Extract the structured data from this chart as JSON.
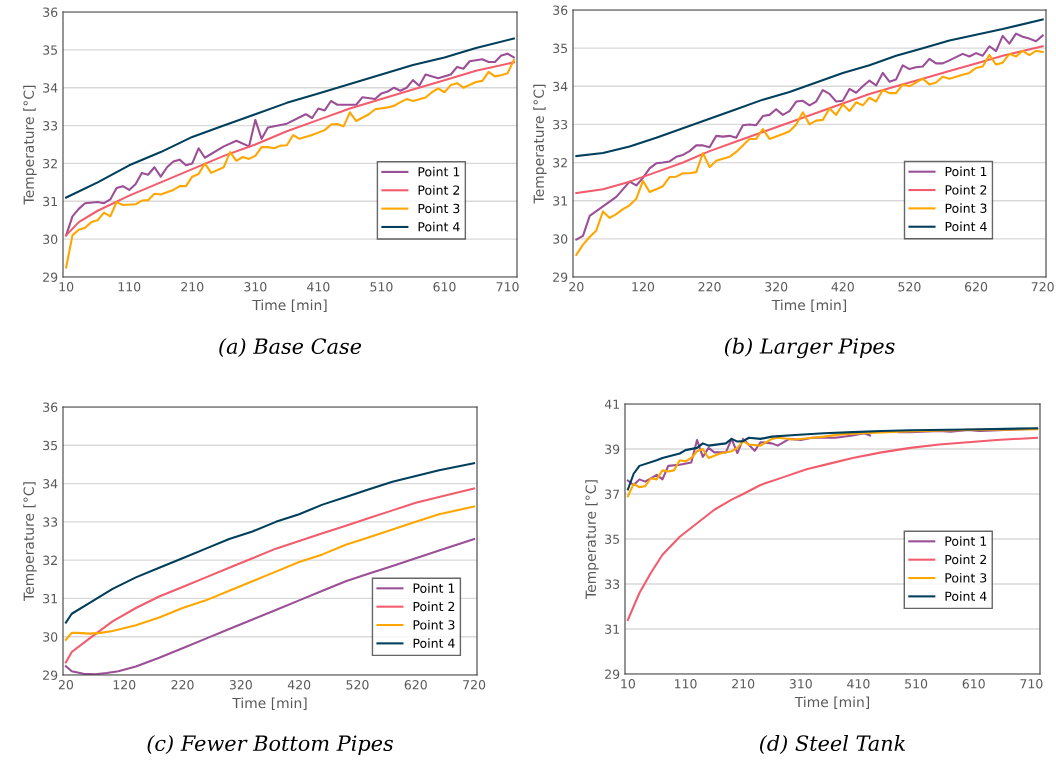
{
  "chart_data": [
    {
      "type": "line",
      "title": "(a) Base Case",
      "xlabel": "Time [min]",
      "ylabel": "Temperature [°C]",
      "xlim": [
        5,
        725
      ],
      "xticks": [
        10,
        110,
        210,
        310,
        410,
        510,
        610,
        710
      ],
      "ylim": [
        29,
        36
      ],
      "yticks": [
        29,
        30,
        31,
        32,
        33,
        34,
        35,
        36
      ],
      "grid": "y",
      "legend": "bottom right",
      "series": [
        {
          "name": "Point 1",
          "color": "#9b4f96",
          "x": [
            10,
            20,
            30,
            40,
            60,
            70,
            80,
            90,
            100,
            110,
            120,
            130,
            140,
            150,
            160,
            170,
            180,
            190,
            200,
            210,
            220,
            230,
            260,
            280,
            300,
            310,
            320,
            330,
            360,
            390,
            400,
            410,
            420,
            430,
            440,
            470,
            480,
            500,
            510,
            520,
            530,
            540,
            550,
            560,
            570,
            580,
            600,
            620,
            630,
            640,
            650,
            670,
            680,
            690,
            700,
            710,
            720
          ],
          "values": [
            30.1,
            30.6,
            30.8,
            30.95,
            30.98,
            30.95,
            31.05,
            31.35,
            31.4,
            31.3,
            31.45,
            31.75,
            31.7,
            31.9,
            31.65,
            31.9,
            32.05,
            32.1,
            31.95,
            32.0,
            32.4,
            32.15,
            32.45,
            32.6,
            32.45,
            33.15,
            32.65,
            32.95,
            33.05,
            33.3,
            33.2,
            33.45,
            33.4,
            33.65,
            33.55,
            33.55,
            33.75,
            33.7,
            33.85,
            33.9,
            34.0,
            33.92,
            34.0,
            34.2,
            34.05,
            34.35,
            34.25,
            34.35,
            34.55,
            34.5,
            34.7,
            34.75,
            34.68,
            34.68,
            34.85,
            34.9,
            34.8
          ]
        },
        {
          "name": "Point 2",
          "color": "#f25c6c",
          "x": [
            10,
            30,
            60,
            110,
            160,
            210,
            260,
            310,
            360,
            410,
            460,
            510,
            560,
            610,
            660,
            720
          ],
          "values": [
            30.1,
            30.45,
            30.75,
            31.15,
            31.5,
            31.85,
            32.2,
            32.5,
            32.85,
            33.15,
            33.45,
            33.7,
            33.95,
            34.2,
            34.45,
            34.67
          ]
        },
        {
          "name": "Point 3",
          "color": "#ffa600",
          "x": [
            10,
            20,
            30,
            40,
            50,
            60,
            70,
            80,
            90,
            100,
            120,
            130,
            140,
            150,
            160,
            180,
            190,
            200,
            210,
            220,
            230,
            240,
            260,
            270,
            280,
            290,
            300,
            310,
            320,
            330,
            340,
            350,
            360,
            370,
            380,
            400,
            420,
            430,
            440,
            450,
            460,
            470,
            490,
            500,
            520,
            530,
            540,
            550,
            560,
            580,
            590,
            600,
            610,
            620,
            630,
            640,
            660,
            670,
            680,
            690,
            700,
            710,
            720
          ],
          "values": [
            29.25,
            30.1,
            30.25,
            30.3,
            30.45,
            30.5,
            30.7,
            30.6,
            30.98,
            30.9,
            30.92,
            31.02,
            31.03,
            31.2,
            31.18,
            31.3,
            31.4,
            31.4,
            31.65,
            31.72,
            32.0,
            31.75,
            31.9,
            32.3,
            32.07,
            32.17,
            32.12,
            32.2,
            32.43,
            32.43,
            32.4,
            32.47,
            32.48,
            32.75,
            32.65,
            32.75,
            32.88,
            33.03,
            33.04,
            32.98,
            33.35,
            33.12,
            33.3,
            33.43,
            33.48,
            33.52,
            33.62,
            33.7,
            33.65,
            33.74,
            33.88,
            33.98,
            33.88,
            34.07,
            34.12,
            34.0,
            34.15,
            34.18,
            34.42,
            34.3,
            34.33,
            34.38,
            34.73
          ]
        },
        {
          "name": "Point 4",
          "color": "#003f5c",
          "x": [
            10,
            60,
            110,
            160,
            210,
            260,
            310,
            360,
            410,
            460,
            510,
            560,
            610,
            660,
            720
          ],
          "values": [
            31.1,
            31.5,
            31.95,
            32.3,
            32.7,
            33.0,
            33.3,
            33.6,
            33.85,
            34.1,
            34.35,
            34.6,
            34.8,
            35.05,
            35.3
          ]
        }
      ]
    },
    {
      "type": "line",
      "title": "(b) Larger Pipes",
      "xlabel": "Time [min]",
      "ylabel": "Temperature [°C]",
      "xlim": [
        15,
        725
      ],
      "xticks": [
        20,
        120,
        220,
        320,
        420,
        520,
        620,
        720
      ],
      "ylim": [
        29,
        36
      ],
      "yticks": [
        29,
        30,
        31,
        32,
        33,
        34,
        35,
        36
      ],
      "grid": "y",
      "legend": "bottom right",
      "series": [
        {
          "name": "Point 1",
          "color": "#9b4f96",
          "x": [
            20,
            30,
            40,
            60,
            80,
            100,
            110,
            120,
            130,
            140,
            150,
            160,
            170,
            180,
            190,
            200,
            210,
            220,
            230,
            240,
            250,
            260,
            270,
            280,
            290,
            300,
            310,
            320,
            330,
            340,
            350,
            360,
            370,
            380,
            390,
            400,
            410,
            420,
            430,
            440,
            450,
            460,
            470,
            480,
            490,
            500,
            510,
            520,
            530,
            540,
            550,
            560,
            570,
            580,
            600,
            610,
            620,
            630,
            640,
            650,
            660,
            670,
            680,
            690,
            700,
            710,
            720
          ],
          "values": [
            29.98,
            30.08,
            30.6,
            30.85,
            31.1,
            31.5,
            31.4,
            31.6,
            31.85,
            31.98,
            32.0,
            32.03,
            32.15,
            32.2,
            32.3,
            32.45,
            32.45,
            32.4,
            32.7,
            32.68,
            32.7,
            32.65,
            32.98,
            33.0,
            32.98,
            33.22,
            33.25,
            33.4,
            33.25,
            33.35,
            33.6,
            33.62,
            33.5,
            33.6,
            33.9,
            33.8,
            33.6,
            33.62,
            33.93,
            33.83,
            34.0,
            34.15,
            34.02,
            34.35,
            34.12,
            34.18,
            34.55,
            34.45,
            34.5,
            34.52,
            34.72,
            34.6,
            34.6,
            34.68,
            34.85,
            34.78,
            34.87,
            34.8,
            35.05,
            34.92,
            35.32,
            35.12,
            35.38,
            35.3,
            35.25,
            35.18,
            35.33
          ]
        },
        {
          "name": "Point 2",
          "color": "#f25c6c",
          "x": [
            20,
            60,
            100,
            140,
            180,
            220,
            260,
            300,
            340,
            380,
            420,
            460,
            500,
            540,
            580,
            620,
            660,
            720
          ],
          "values": [
            31.2,
            31.3,
            31.5,
            31.75,
            32.0,
            32.3,
            32.55,
            32.8,
            33.05,
            33.3,
            33.55,
            33.8,
            34.0,
            34.2,
            34.4,
            34.6,
            34.8,
            35.05
          ]
        },
        {
          "name": "Point 3",
          "color": "#ffa600",
          "x": [
            20,
            30,
            40,
            50,
            60,
            70,
            80,
            90,
            100,
            110,
            120,
            130,
            140,
            150,
            160,
            170,
            180,
            190,
            200,
            210,
            220,
            230,
            250,
            260,
            280,
            290,
            300,
            310,
            330,
            340,
            350,
            360,
            370,
            380,
            390,
            400,
            410,
            420,
            430,
            440,
            450,
            460,
            470,
            480,
            490,
            500,
            510,
            520,
            540,
            550,
            560,
            570,
            580,
            600,
            610,
            620,
            630,
            640,
            650,
            660,
            670,
            680,
            690,
            700,
            710,
            720
          ],
          "values": [
            29.58,
            29.85,
            30.05,
            30.22,
            30.72,
            30.55,
            30.65,
            30.78,
            30.88,
            31.05,
            31.52,
            31.23,
            31.3,
            31.38,
            31.62,
            31.63,
            31.72,
            31.72,
            31.75,
            32.25,
            31.88,
            32.05,
            32.15,
            32.28,
            32.62,
            32.62,
            32.88,
            32.62,
            32.75,
            32.82,
            33.0,
            33.32,
            33.0,
            33.1,
            33.12,
            33.42,
            33.25,
            33.53,
            33.35,
            33.58,
            33.5,
            33.7,
            33.6,
            33.9,
            33.82,
            33.82,
            34.05,
            34.0,
            34.2,
            34.05,
            34.1,
            34.25,
            34.2,
            34.3,
            34.35,
            34.48,
            34.52,
            34.82,
            34.57,
            34.62,
            34.85,
            34.78,
            34.93,
            34.82,
            34.93,
            34.9
          ]
        },
        {
          "name": "Point 4",
          "color": "#003f5c",
          "x": [
            20,
            60,
            100,
            140,
            180,
            220,
            260,
            300,
            340,
            380,
            420,
            460,
            500,
            540,
            580,
            620,
            660,
            720
          ],
          "values": [
            32.17,
            32.25,
            32.42,
            32.65,
            32.9,
            33.15,
            33.4,
            33.65,
            33.85,
            34.1,
            34.35,
            34.55,
            34.8,
            35.0,
            35.2,
            35.35,
            35.5,
            35.75
          ]
        }
      ]
    },
    {
      "type": "line",
      "title": "(c) Fewer Bottom Pipes",
      "xlabel": "Time [min]",
      "ylabel": "Temperature [°C]",
      "xlim": [
        15,
        725
      ],
      "xticks": [
        20,
        120,
        220,
        320,
        420,
        520,
        620,
        720
      ],
      "ylim": [
        29,
        36
      ],
      "yticks": [
        29,
        30,
        31,
        32,
        33,
        34,
        35,
        36
      ],
      "grid": "y",
      "legend": "bottom right",
      "series": [
        {
          "name": "Point 1",
          "color": "#9b4f96",
          "x": [
            20,
            30,
            50,
            70,
            90,
            110,
            140,
            180,
            220,
            260,
            300,
            340,
            380,
            420,
            460,
            500,
            540,
            580,
            620,
            660,
            720
          ],
          "values": [
            29.23,
            29.1,
            29.03,
            29.02,
            29.05,
            29.1,
            29.22,
            29.45,
            29.7,
            29.95,
            30.2,
            30.45,
            30.7,
            30.95,
            31.2,
            31.45,
            31.65,
            31.85,
            32.05,
            32.25,
            32.55
          ]
        },
        {
          "name": "Point 2",
          "color": "#f25c6c",
          "x": [
            20,
            30,
            60,
            100,
            140,
            180,
            220,
            260,
            300,
            340,
            380,
            420,
            460,
            500,
            540,
            580,
            620,
            660,
            720
          ],
          "values": [
            29.33,
            29.6,
            29.95,
            30.4,
            30.75,
            31.05,
            31.3,
            31.55,
            31.8,
            32.05,
            32.3,
            32.5,
            32.7,
            32.9,
            33.1,
            33.3,
            33.5,
            33.65,
            33.87
          ]
        },
        {
          "name": "Point 3",
          "color": "#ffa600",
          "x": [
            20,
            30,
            40,
            60,
            80,
            100,
            140,
            180,
            220,
            260,
            300,
            340,
            380,
            420,
            460,
            500,
            540,
            580,
            620,
            660,
            720
          ],
          "values": [
            29.92,
            30.1,
            30.1,
            30.08,
            30.1,
            30.15,
            30.3,
            30.5,
            30.75,
            30.95,
            31.2,
            31.45,
            31.7,
            31.95,
            32.15,
            32.4,
            32.6,
            32.8,
            33.0,
            33.2,
            33.4
          ]
        },
        {
          "name": "Point 4",
          "color": "#003f5c",
          "x": [
            20,
            30,
            60,
            100,
            140,
            180,
            220,
            260,
            300,
            340,
            380,
            420,
            460,
            500,
            540,
            580,
            620,
            660,
            720
          ],
          "values": [
            30.37,
            30.6,
            30.88,
            31.25,
            31.55,
            31.8,
            32.05,
            32.3,
            32.55,
            32.75,
            33.0,
            33.2,
            33.45,
            33.65,
            33.85,
            34.05,
            34.2,
            34.35,
            34.53
          ]
        }
      ]
    },
    {
      "type": "line",
      "title": "(d) Steel Tank",
      "xlabel": "Time [min]",
      "ylabel": "Temperature [°C]",
      "xlim": [
        5,
        725
      ],
      "xticks": [
        10,
        110,
        210,
        310,
        410,
        510,
        610,
        710
      ],
      "ylim": [
        29,
        41
      ],
      "yticks": [
        29,
        31,
        33,
        35,
        37,
        39,
        41
      ],
      "grid": "y",
      "legend": "bottom right",
      "series": [
        {
          "name": "Point 1",
          "color": "#9b4f96",
          "x": [
            10,
            20,
            30,
            40,
            60,
            70,
            80,
            100,
            120,
            130,
            140,
            150,
            160,
            180,
            190,
            200,
            210,
            230,
            240,
            260,
            270,
            290,
            310,
            330,
            350,
            370,
            400,
            420,
            430,
            450,
            480,
            500,
            550,
            570,
            600,
            620,
            720
          ],
          "values": [
            37.6,
            37.4,
            37.65,
            37.55,
            37.85,
            37.65,
            38.25,
            38.3,
            38.4,
            39.4,
            38.65,
            39.05,
            38.85,
            38.85,
            39.45,
            38.82,
            39.45,
            38.92,
            39.3,
            39.25,
            39.15,
            39.45,
            39.4,
            39.5,
            39.5,
            39.5,
            39.6,
            39.7,
            39.6,
            null,
            39.75,
            39.75,
            39.8,
            39.77,
            39.85,
            39.8,
            39.9
          ]
        },
        {
          "name": "Point 2",
          "color": "#f25c6c",
          "x": [
            10,
            30,
            50,
            70,
            100,
            130,
            160,
            190,
            210,
            240,
            280,
            320,
            360,
            400,
            450,
            500,
            550,
            600,
            650,
            720
          ],
          "values": [
            31.4,
            32.6,
            33.5,
            34.3,
            35.1,
            35.7,
            36.3,
            36.75,
            37.0,
            37.4,
            37.75,
            38.1,
            38.35,
            38.6,
            38.85,
            39.05,
            39.2,
            39.3,
            39.4,
            39.5
          ]
        },
        {
          "name": "Point 3",
          "color": "#ffa600",
          "x": [
            10,
            20,
            30,
            40,
            50,
            60,
            70,
            80,
            90,
            100,
            110,
            120,
            130,
            140,
            150,
            170,
            190,
            200,
            210,
            220,
            240,
            260,
            270,
            300,
            330,
            350,
            380,
            420,
            460,
            520,
            600,
            720
          ],
          "values": [
            36.9,
            37.45,
            37.3,
            37.35,
            37.7,
            37.65,
            38.05,
            38.0,
            38.05,
            38.5,
            38.45,
            38.6,
            38.9,
            39.0,
            38.6,
            38.8,
            38.9,
            39.05,
            39.35,
            39.2,
            39.15,
            39.45,
            39.5,
            39.42,
            39.5,
            39.55,
            39.65,
            39.7,
            39.75,
            39.8,
            39.85,
            39.88
          ]
        },
        {
          "name": "Point 4",
          "color": "#003f5c",
          "x": [
            10,
            20,
            30,
            60,
            70,
            100,
            110,
            130,
            140,
            150,
            180,
            190,
            200,
            210,
            220,
            240,
            260,
            300,
            350,
            400,
            450,
            500,
            600,
            720
          ],
          "values": [
            37.2,
            37.9,
            38.25,
            38.5,
            38.6,
            38.8,
            38.95,
            39.05,
            39.25,
            39.15,
            39.25,
            39.45,
            39.33,
            39.35,
            39.5,
            39.45,
            39.55,
            39.62,
            39.7,
            39.75,
            39.8,
            39.83,
            39.87,
            39.92
          ]
        }
      ]
    }
  ]
}
